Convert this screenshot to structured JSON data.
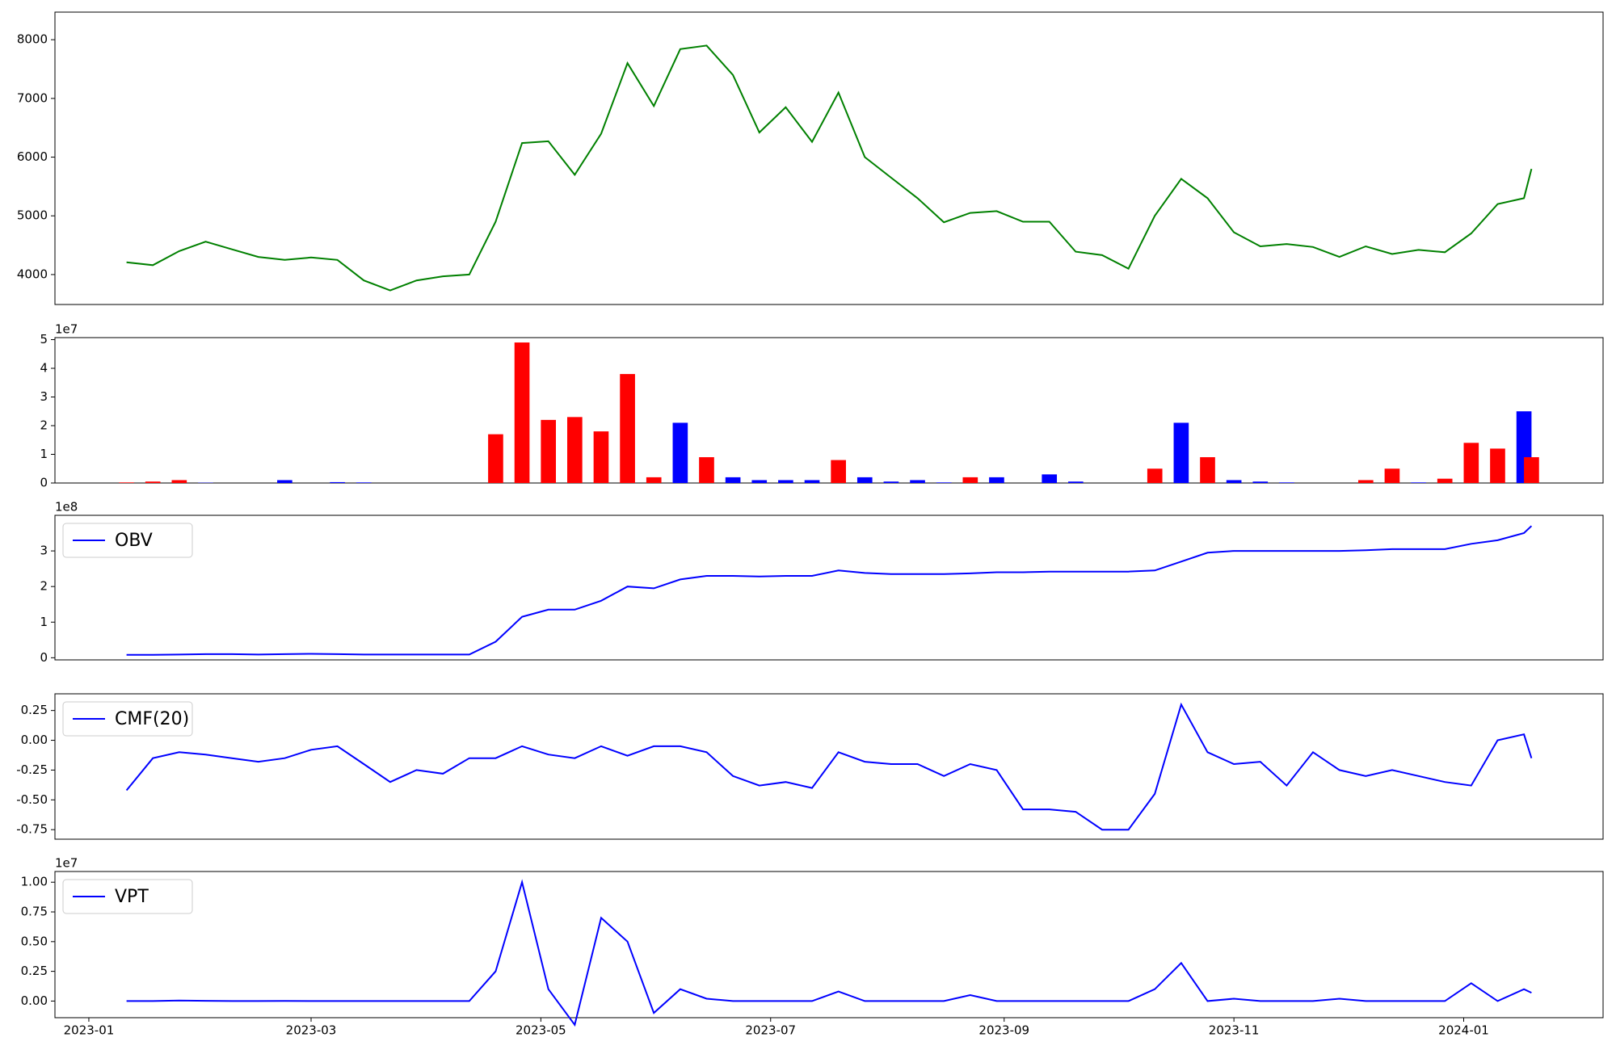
{
  "chart_data": [
    {
      "type": "line",
      "x": [
        "2023-01-11",
        "2023-01-18",
        "2023-01-25",
        "2023-02-01",
        "2023-02-08",
        "2023-02-15",
        "2023-02-22",
        "2023-03-01",
        "2023-03-08",
        "2023-03-15",
        "2023-03-22",
        "2023-03-29",
        "2023-04-05",
        "2023-04-12",
        "2023-04-19",
        "2023-04-26",
        "2023-05-03",
        "2023-05-10",
        "2023-05-17",
        "2023-05-24",
        "2023-05-31",
        "2023-06-07",
        "2023-06-14",
        "2023-06-21",
        "2023-06-28",
        "2023-07-05",
        "2023-07-12",
        "2023-07-19",
        "2023-07-26",
        "2023-08-02",
        "2023-08-09",
        "2023-08-16",
        "2023-08-23",
        "2023-08-30",
        "2023-09-06",
        "2023-09-13",
        "2023-09-20",
        "2023-09-27",
        "2023-10-04",
        "2023-10-11",
        "2023-10-18",
        "2023-10-25",
        "2023-11-01",
        "2023-11-08",
        "2023-11-15",
        "2023-11-22",
        "2023-11-29",
        "2023-12-06",
        "2023-12-13",
        "2023-12-20",
        "2023-12-27",
        "2024-01-03",
        "2024-01-10",
        "2024-01-17",
        "2024-01-19"
      ],
      "values": [
        4210,
        4160,
        4400,
        4560,
        4430,
        4300,
        4250,
        4290,
        4250,
        3900,
        3730,
        3900,
        3970,
        4000,
        4900,
        6240,
        6270,
        5700,
        6400,
        7600,
        6870,
        7840,
        7900,
        7400,
        6420,
        6850,
        6260,
        7100,
        6000,
        5650,
        5300,
        4890,
        5050,
        5080,
        4900,
        4900,
        4390,
        4330,
        4100,
        5000,
        5630,
        5300,
        4720,
        4480,
        4520,
        4470,
        4300,
        4480,
        4350,
        4420,
        4380,
        4700,
        5200,
        5300,
        5800
      ],
      "color": "#008000",
      "xlim": [
        "2022-12-23",
        "2024-02-07"
      ],
      "ylim": [
        3490,
        8470
      ],
      "yticks": [
        4000,
        5000,
        6000,
        7000,
        8000
      ]
    },
    {
      "type": "bar",
      "x": [
        "2023-01-11",
        "2023-01-18",
        "2023-01-25",
        "2023-02-01",
        "2023-02-08",
        "2023-02-15",
        "2023-02-22",
        "2023-03-01",
        "2023-03-08",
        "2023-03-15",
        "2023-03-22",
        "2023-03-29",
        "2023-04-05",
        "2023-04-12",
        "2023-04-19",
        "2023-04-26",
        "2023-05-03",
        "2023-05-10",
        "2023-05-17",
        "2023-05-24",
        "2023-05-31",
        "2023-06-07",
        "2023-06-14",
        "2023-06-21",
        "2023-06-28",
        "2023-07-05",
        "2023-07-12",
        "2023-07-19",
        "2023-07-26",
        "2023-08-02",
        "2023-08-09",
        "2023-08-16",
        "2023-08-23",
        "2023-08-30",
        "2023-09-06",
        "2023-09-13",
        "2023-09-20",
        "2023-09-27",
        "2023-10-04",
        "2023-10-11",
        "2023-10-18",
        "2023-10-25",
        "2023-11-01",
        "2023-11-08",
        "2023-11-15",
        "2023-11-22",
        "2023-11-29",
        "2023-12-06",
        "2023-12-13",
        "2023-12-20",
        "2023-12-27",
        "2024-01-03",
        "2024-01-10",
        "2024-01-17",
        "2024-01-19"
      ],
      "values": [
        200000,
        500000,
        1000000,
        100000,
        0,
        0,
        1000000,
        0,
        300000,
        200000,
        0,
        0,
        0,
        0,
        17000000,
        49000000,
        22000000,
        23000000,
        18000000,
        38000000,
        2000000,
        21000000,
        9000000,
        2000000,
        1000000,
        1000000,
        1000000,
        8000000,
        2000000,
        500000,
        1000000,
        200000,
        2000000,
        2000000,
        0,
        3000000,
        500000,
        0,
        0,
        5000000,
        21000000,
        9000000,
        1000000,
        500000,
        200000,
        0,
        0,
        1000000,
        5000000,
        200000,
        1500000,
        14000000,
        12000000,
        25000000,
        9000000
      ],
      "colors": [
        "#ff0000",
        "#ff0000",
        "#ff0000",
        "#0000ff",
        "#0000ff",
        "#0000ff",
        "#0000ff",
        "#0000ff",
        "#0000ff",
        "#0000ff",
        "#0000ff",
        "#0000ff",
        "#0000ff",
        "#0000ff",
        "#ff0000",
        "#ff0000",
        "#ff0000",
        "#ff0000",
        "#ff0000",
        "#ff0000",
        "#ff0000",
        "#0000ff",
        "#ff0000",
        "#0000ff",
        "#0000ff",
        "#0000ff",
        "#0000ff",
        "#ff0000",
        "#0000ff",
        "#0000ff",
        "#0000ff",
        "#0000ff",
        "#ff0000",
        "#0000ff",
        "#0000ff",
        "#0000ff",
        "#0000ff",
        "#0000ff",
        "#0000ff",
        "#ff0000",
        "#0000ff",
        "#ff0000",
        "#0000ff",
        "#0000ff",
        "#0000ff",
        "#0000ff",
        "#0000ff",
        "#ff0000",
        "#ff0000",
        "#0000ff",
        "#ff0000",
        "#ff0000",
        "#ff0000",
        "#0000ff",
        "#ff0000"
      ],
      "xlim": [
        "2022-12-23",
        "2024-02-07"
      ],
      "ylim": [
        0,
        50700000
      ],
      "yticks": [
        0,
        {
          "value": 10000000,
          "label": "1"
        },
        {
          "value": 20000000,
          "label": "2"
        },
        {
          "value": 30000000,
          "label": "3"
        },
        {
          "value": 40000000,
          "label": "4"
        },
        {
          "value": 50000000,
          "label": "5"
        }
      ],
      "y_offset_label": "1e7"
    },
    {
      "type": "line",
      "x": [
        "2023-01-11",
        "2023-01-18",
        "2023-01-25",
        "2023-02-01",
        "2023-02-08",
        "2023-02-15",
        "2023-02-22",
        "2023-03-01",
        "2023-03-08",
        "2023-03-15",
        "2023-03-22",
        "2023-03-29",
        "2023-04-05",
        "2023-04-12",
        "2023-04-19",
        "2023-04-26",
        "2023-05-03",
        "2023-05-10",
        "2023-05-17",
        "2023-05-24",
        "2023-05-31",
        "2023-06-07",
        "2023-06-14",
        "2023-06-21",
        "2023-06-28",
        "2023-07-05",
        "2023-07-12",
        "2023-07-19",
        "2023-07-26",
        "2023-08-02",
        "2023-08-09",
        "2023-08-16",
        "2023-08-23",
        "2023-08-30",
        "2023-09-06",
        "2023-09-13",
        "2023-09-20",
        "2023-09-27",
        "2023-10-04",
        "2023-10-11",
        "2023-10-18",
        "2023-10-25",
        "2023-11-01",
        "2023-11-08",
        "2023-11-15",
        "2023-11-22",
        "2023-11-29",
        "2023-12-06",
        "2023-12-13",
        "2023-12-20",
        "2023-12-27",
        "2024-01-03",
        "2024-01-10",
        "2024-01-17",
        "2024-01-19"
      ],
      "series": [
        {
          "name": "OBV",
          "color": "#0000ff",
          "values": [
            8000000,
            8000000,
            9000000,
            10000000,
            10000000,
            9000000,
            10000000,
            11000000,
            10000000,
            9000000,
            9000000,
            9000000,
            9000000,
            9000000,
            45000000,
            115000000,
            135000000,
            135000000,
            160000000,
            200000000,
            195000000,
            220000000,
            230000000,
            230000000,
            228000000,
            230000000,
            230000000,
            245000000,
            238000000,
            235000000,
            235000000,
            235000000,
            237000000,
            240000000,
            240000000,
            242000000,
            242000000,
            242000000,
            242000000,
            245000000,
            270000000,
            295000000,
            300000000,
            300000000,
            300000000,
            300000000,
            300000000,
            302000000,
            305000000,
            305000000,
            305000000,
            320000000,
            330000000,
            350000000,
            370000000
          ]
        }
      ],
      "legend": "upper left",
      "xlim": [
        "2022-12-23",
        "2024-02-07"
      ],
      "ylim": [
        -6000000,
        400000000
      ],
      "yticks": [
        0,
        {
          "value": 100000000,
          "label": "1"
        },
        {
          "value": 200000000,
          "label": "2"
        },
        {
          "value": 300000000,
          "label": "3"
        }
      ],
      "y_offset_label": "1e8"
    },
    {
      "type": "line",
      "x": [
        "2023-01-11",
        "2023-01-18",
        "2023-01-25",
        "2023-02-01",
        "2023-02-08",
        "2023-02-15",
        "2023-02-22",
        "2023-03-01",
        "2023-03-08",
        "2023-03-15",
        "2023-03-22",
        "2023-03-29",
        "2023-04-05",
        "2023-04-12",
        "2023-04-19",
        "2023-04-26",
        "2023-05-03",
        "2023-05-10",
        "2023-05-17",
        "2023-05-24",
        "2023-05-31",
        "2023-06-07",
        "2023-06-14",
        "2023-06-21",
        "2023-06-28",
        "2023-07-05",
        "2023-07-12",
        "2023-07-19",
        "2023-07-26",
        "2023-08-02",
        "2023-08-09",
        "2023-08-16",
        "2023-08-23",
        "2023-08-30",
        "2023-09-06",
        "2023-09-13",
        "2023-09-20",
        "2023-09-27",
        "2023-10-04",
        "2023-10-11",
        "2023-10-18",
        "2023-10-25",
        "2023-11-01",
        "2023-11-08",
        "2023-11-15",
        "2023-11-22",
        "2023-11-29",
        "2023-12-06",
        "2023-12-13",
        "2023-12-20",
        "2023-12-27",
        "2024-01-03",
        "2024-01-10",
        "2024-01-17",
        "2024-01-19"
      ],
      "series": [
        {
          "name": "CMF(20)",
          "color": "#0000ff",
          "values": [
            -0.42,
            -0.15,
            -0.1,
            -0.12,
            -0.15,
            -0.18,
            -0.15,
            -0.08,
            -0.05,
            -0.2,
            -0.35,
            -0.25,
            -0.28,
            -0.15,
            -0.15,
            -0.05,
            -0.12,
            -0.15,
            -0.05,
            -0.13,
            -0.05,
            -0.05,
            -0.1,
            -0.3,
            -0.38,
            -0.35,
            -0.4,
            -0.1,
            -0.18,
            -0.2,
            -0.2,
            -0.3,
            -0.2,
            -0.25,
            -0.58,
            -0.58,
            -0.6,
            -0.75,
            -0.75,
            -0.45,
            0.3,
            -0.1,
            -0.2,
            -0.18,
            -0.38,
            -0.1,
            -0.25,
            -0.3,
            -0.25,
            -0.3,
            -0.35,
            -0.38,
            0.0,
            0.05,
            -0.15
          ]
        }
      ],
      "legend": "upper left",
      "xlim": [
        "2022-12-23",
        "2024-02-07"
      ],
      "ylim": [
        -0.83,
        0.39
      ],
      "yticks": [
        0.25,
        {
          "value": 0,
          "label": "0.00"
        },
        -0.25,
        {
          "value": -0.5,
          "label": "-0.50"
        },
        -0.75
      ]
    },
    {
      "type": "line",
      "x": [
        "2023-01-11",
        "2023-01-18",
        "2023-01-25",
        "2023-02-01",
        "2023-02-08",
        "2023-02-15",
        "2023-02-22",
        "2023-03-01",
        "2023-03-08",
        "2023-03-15",
        "2023-03-22",
        "2023-03-29",
        "2023-04-05",
        "2023-04-12",
        "2023-04-19",
        "2023-04-26",
        "2023-05-03",
        "2023-05-10",
        "2023-05-17",
        "2023-05-24",
        "2023-05-31",
        "2023-06-07",
        "2023-06-14",
        "2023-06-21",
        "2023-06-28",
        "2023-07-05",
        "2023-07-12",
        "2023-07-19",
        "2023-07-26",
        "2023-08-02",
        "2023-08-09",
        "2023-08-16",
        "2023-08-23",
        "2023-08-30",
        "2023-09-06",
        "2023-09-13",
        "2023-09-20",
        "2023-09-27",
        "2023-10-04",
        "2023-10-11",
        "2023-10-18",
        "2023-10-25",
        "2023-11-01",
        "2023-11-08",
        "2023-11-15",
        "2023-11-22",
        "2023-11-29",
        "2023-12-06",
        "2023-12-13",
        "2023-12-20",
        "2023-12-27",
        "2024-01-03",
        "2024-01-10",
        "2024-01-17",
        "2024-01-19"
      ],
      "series": [
        {
          "name": "VPT",
          "color": "#0000ff",
          "values": [
            0,
            0,
            50000,
            20000,
            0,
            0,
            10000,
            0,
            0,
            0,
            0,
            0,
            0,
            0,
            2500000,
            10000000,
            1000000,
            -2000000,
            7000000,
            5000000,
            -1000000,
            1000000,
            200000,
            0,
            0,
            0,
            0,
            800000,
            0,
            0,
            0,
            0,
            500000,
            0,
            0,
            0,
            0,
            0,
            0,
            1000000,
            3200000,
            0,
            200000,
            0,
            0,
            0,
            200000,
            0,
            0,
            0,
            0,
            1500000,
            0,
            1000000,
            700000
          ]
        }
      ],
      "legend": "upper left",
      "xlim": [
        "2022-12-23",
        "2024-02-07"
      ],
      "ylim": [
        -1400000,
        10900000
      ],
      "yticks": [
        {
          "value": 0,
          "label": "0.00"
        },
        {
          "value": 2500000,
          "label": "0.25"
        },
        {
          "value": 5000000,
          "label": "0.50"
        },
        {
          "value": 7500000,
          "label": "0.75"
        },
        {
          "value": 10000000,
          "label": "1.00"
        }
      ],
      "y_offset_label": "1e7",
      "xticks": [
        "2023-01",
        "2023-03",
        "2023-05",
        "2023-07",
        "2023-09",
        "2023-11",
        "2024-01"
      ]
    }
  ]
}
